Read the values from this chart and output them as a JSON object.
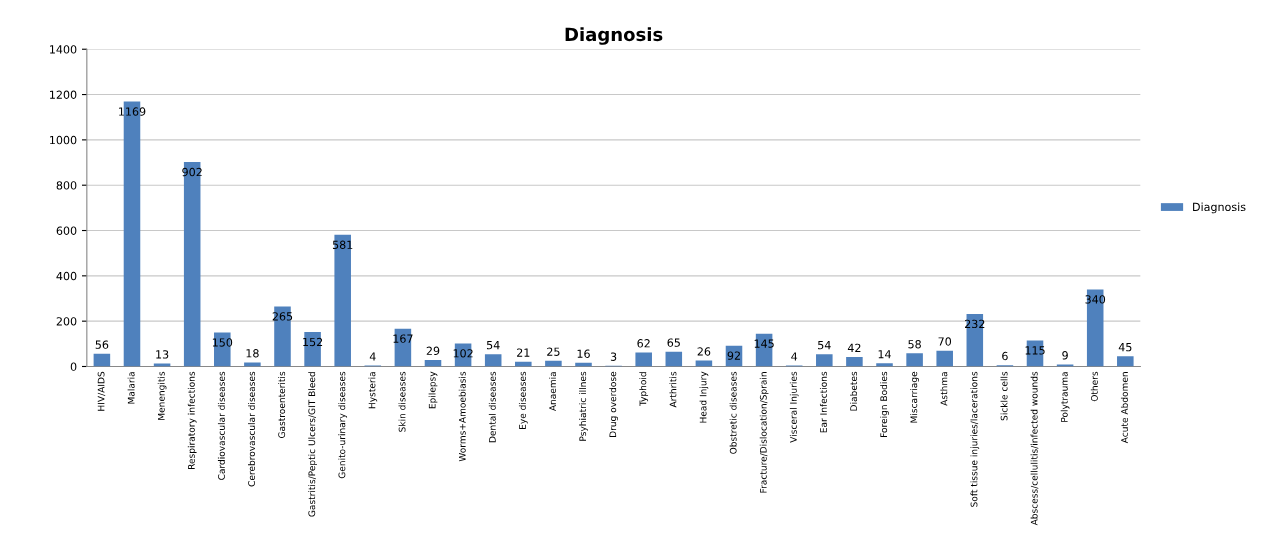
{
  "chart_data": {
    "type": "bar",
    "title": "Diagnosis",
    "categories": [
      "HIV/AIDS",
      "Malaria",
      "Menengitis",
      "Respiratory infections",
      "Cardiovascular diseases",
      "Cerebrovascular diseases",
      "Gastroenteritis",
      "Gastritis/Peptic Ulcers/GIT Bleed",
      "Genito-urinary diseases",
      "Hysteria",
      "Skin diseases",
      "Epilepsy",
      "Worms+Amoebiasis",
      "Dental diseases",
      "Eye diseases",
      "Anaemia",
      "Psyhiatric illnes",
      "Drug overdose",
      "Typhoid",
      "Arthritis",
      "Head Injury",
      "Obstretic diseases",
      "Fracture/Dislocation/Sprain",
      "Visceral Injuries",
      "Ear Infections",
      "Diabetes",
      "Foreign Bodies",
      "Miscarriage",
      "Asthma",
      "Soft tissue injuries/lacerations",
      "Sickle cells",
      "Abscess/cellulitis/infected wounds",
      "Polytrauma",
      "Others",
      "Acute Abdomen"
    ],
    "series": [
      {
        "name": "Diagnosis",
        "color": "#4f81bd",
        "values": [
          56,
          1169,
          13,
          902,
          150,
          18,
          265,
          152,
          581,
          4,
          167,
          29,
          102,
          54,
          21,
          25,
          16,
          3,
          62,
          65,
          26,
          92,
          145,
          4,
          54,
          42,
          14,
          58,
          70,
          232,
          6,
          115,
          9,
          340,
          45
        ]
      }
    ],
    "ylim": [
      0,
      1400
    ],
    "yticks": [
      0,
      200,
      400,
      600,
      800,
      1000,
      1200,
      1400
    ],
    "data_labels": true,
    "grid": "y",
    "legend": "right"
  }
}
